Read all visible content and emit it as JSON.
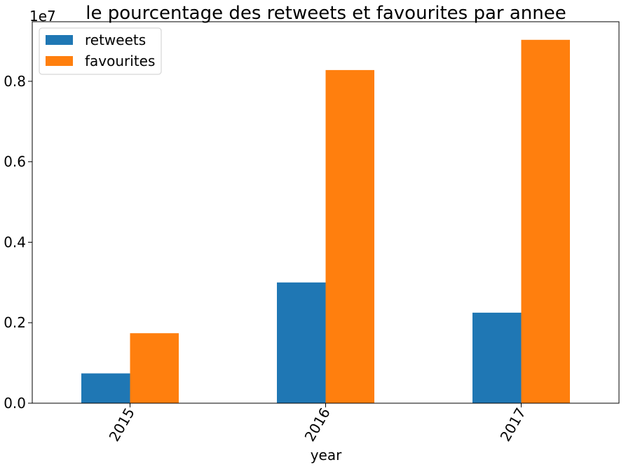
{
  "chart_data": {
    "type": "bar",
    "title": "le pourcentage des retweets et favourites par annee",
    "xlabel": "year",
    "ylabel": "",
    "scale_label": "1e7",
    "scale": 10000000,
    "categories": [
      "2015",
      "2016",
      "2017"
    ],
    "series": [
      {
        "name": "retweets",
        "color": "#1f77b4",
        "values": [
          740000,
          3000000,
          2250000
        ]
      },
      {
        "name": "favourites",
        "color": "#ff7f0e",
        "values": [
          1740000,
          8280000,
          9030000
        ]
      }
    ],
    "ylim": [
      0,
      9480000
    ],
    "yticks": [
      0,
      2000000,
      4000000,
      6000000,
      8000000
    ],
    "ytick_labels": [
      "0.0",
      "0.2",
      "0.4",
      "0.6",
      "0.8"
    ],
    "legend_position": "top-left",
    "grid": false
  }
}
